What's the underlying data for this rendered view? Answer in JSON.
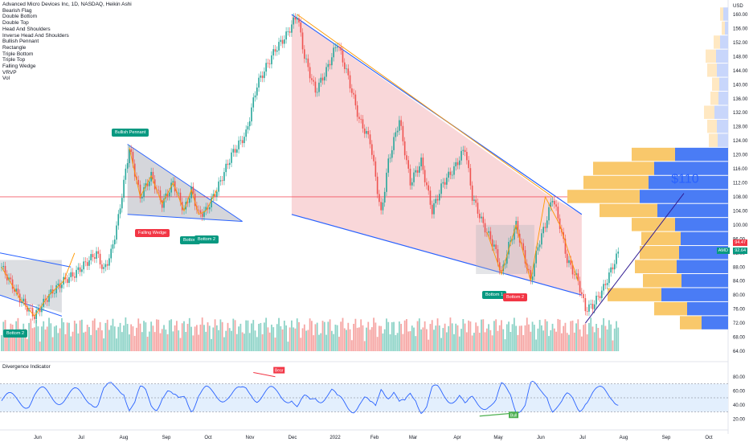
{
  "header": {
    "title": "Advanced Micro Devices Inc, 1D, NASDAQ, Heikin Ashi",
    "indicators": [
      "Bearish Flag",
      "Double Bottom",
      "Double Top",
      "Head And Shoulders",
      "Inverse Head And Shoulders",
      "Bullish Pennant",
      "Rectangle",
      "Triple Bottom",
      "Triple Top",
      "Falling Wedge",
      "VRVP",
      "Vol"
    ]
  },
  "chart_data": {
    "type": "candlestick",
    "currency": "USD",
    "price_ticks": [
      160,
      156,
      152,
      148,
      144,
      140,
      136,
      132,
      128,
      124,
      120,
      116,
      112,
      108,
      104,
      100,
      96,
      92,
      88,
      84,
      80,
      76,
      72,
      68,
      64
    ],
    "month_labels": [
      "Jun",
      "Jul",
      "Aug",
      "Sep",
      "Oct",
      "Nov",
      "Dec",
      "2022",
      "Feb",
      "Mar",
      "Apr",
      "May",
      "Jun",
      "Jul",
      "Aug",
      "Sep",
      "Oct"
    ],
    "price_path": [
      {
        "d": 0,
        "p": 88
      },
      {
        "d": 10,
        "p": 79
      },
      {
        "d": 18,
        "p": 74
      },
      {
        "d": 26,
        "p": 80
      },
      {
        "d": 34,
        "p": 84
      },
      {
        "d": 40,
        "p": 86
      },
      {
        "d": 48,
        "p": 90
      },
      {
        "d": 52,
        "p": 92
      },
      {
        "d": 56,
        "p": 87
      },
      {
        "d": 60,
        "p": 92
      },
      {
        "d": 64,
        "p": 102
      },
      {
        "d": 70,
        "p": 122
      },
      {
        "d": 76,
        "p": 108
      },
      {
        "d": 82,
        "p": 114
      },
      {
        "d": 88,
        "p": 106
      },
      {
        "d": 94,
        "p": 112
      },
      {
        "d": 100,
        "p": 104
      },
      {
        "d": 104,
        "p": 110
      },
      {
        "d": 108,
        "p": 103
      },
      {
        "d": 112,
        "p": 104
      },
      {
        "d": 118,
        "p": 110
      },
      {
        "d": 126,
        "p": 120
      },
      {
        "d": 134,
        "p": 126
      },
      {
        "d": 140,
        "p": 140
      },
      {
        "d": 146,
        "p": 146
      },
      {
        "d": 150,
        "p": 150
      },
      {
        "d": 156,
        "p": 154
      },
      {
        "d": 162,
        "p": 160
      },
      {
        "d": 166,
        "p": 148
      },
      {
        "d": 172,
        "p": 138
      },
      {
        "d": 178,
        "p": 144
      },
      {
        "d": 184,
        "p": 152
      },
      {
        "d": 190,
        "p": 142
      },
      {
        "d": 196,
        "p": 130
      },
      {
        "d": 202,
        "p": 124
      },
      {
        "d": 208,
        "p": 103
      },
      {
        "d": 212,
        "p": 118
      },
      {
        "d": 218,
        "p": 130
      },
      {
        "d": 224,
        "p": 112
      },
      {
        "d": 230,
        "p": 118
      },
      {
        "d": 236,
        "p": 104
      },
      {
        "d": 242,
        "p": 112
      },
      {
        "d": 248,
        "p": 116
      },
      {
        "d": 254,
        "p": 122
      },
      {
        "d": 258,
        "p": 108
      },
      {
        "d": 264,
        "p": 100
      },
      {
        "d": 270,
        "p": 94
      },
      {
        "d": 274,
        "p": 86
      },
      {
        "d": 278,
        "p": 94
      },
      {
        "d": 282,
        "p": 100
      },
      {
        "d": 286,
        "p": 92
      },
      {
        "d": 290,
        "p": 84
      },
      {
        "d": 294,
        "p": 94
      },
      {
        "d": 298,
        "p": 100
      },
      {
        "d": 302,
        "p": 108
      },
      {
        "d": 306,
        "p": 100
      },
      {
        "d": 310,
        "p": 90
      },
      {
        "d": 316,
        "p": 84
      },
      {
        "d": 320,
        "p": 76
      },
      {
        "d": 324,
        "p": 77
      },
      {
        "d": 330,
        "p": 82
      },
      {
        "d": 334,
        "p": 87
      },
      {
        "d": 338,
        "p": 92
      }
    ],
    "volume_profile_note": "VRVP bars on right",
    "price_labels": [
      {
        "value": "94.47",
        "color": "#f23645"
      },
      {
        "value": "92.64",
        "color": "#089981"
      }
    ],
    "ticker_label": "AMD",
    "horizontal_line": 108,
    "annotation_text": "$110",
    "pattern_labels": [
      {
        "text": "Bullish Pennant",
        "color": "green"
      },
      {
        "text": "Falling Wedge",
        "color": "red"
      },
      {
        "text": "Bottom",
        "color": "green"
      },
      {
        "text": "Bottom 2",
        "color": "green"
      },
      {
        "text": "Bottom 2",
        "color": "green"
      },
      {
        "text": "Bottom 1",
        "color": "green"
      },
      {
        "text": "Bottom 2",
        "color": "red"
      }
    ],
    "indicator": {
      "title": "Divergence Indicator",
      "ticks": [
        80.0,
        60.0,
        40.0,
        20.0
      ],
      "labels": [
        "Bear",
        "Bull"
      ]
    }
  }
}
